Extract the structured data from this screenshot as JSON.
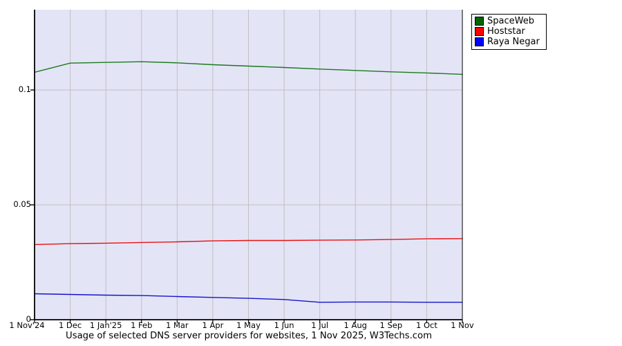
{
  "chart_data": {
    "type": "line",
    "title": "Usage of selected DNS server providers for websites, 1 Nov 2025, W3Techs.com",
    "x_labels": [
      "1 Nov'24",
      "1 Dec",
      "1 Jan'25",
      "1 Feb",
      "1 Mar",
      "1 Apr",
      "1 May",
      "1 Jun",
      "1 Jul",
      "1 Aug",
      "1 Sep",
      "1 Oct",
      "1 Nov"
    ],
    "yticks": [
      {
        "value": 0,
        "label": "0"
      },
      {
        "value": 0.05,
        "label": "0.05"
      },
      {
        "value": 0.1,
        "label": "0.1"
      }
    ],
    "ylim": [
      0,
      0.135
    ],
    "grid": true,
    "legend_position": "top-right",
    "series": [
      {
        "name": "SpaceWeb",
        "swatch_color": "#006400",
        "line_color": "#1a7a1a",
        "values": [
          0.1077,
          0.1117,
          0.112,
          0.1123,
          0.1118,
          0.111,
          0.1104,
          0.1098,
          0.1091,
          0.1085,
          0.1079,
          0.1074,
          0.1068
        ]
      },
      {
        "name": "Hoststar",
        "swatch_color": "#ff0000",
        "line_color": "#e81010",
        "values": [
          0.0327,
          0.0331,
          0.0333,
          0.0336,
          0.0339,
          0.0343,
          0.0345,
          0.0345,
          0.0346,
          0.0347,
          0.0349,
          0.0352,
          0.0353
        ]
      },
      {
        "name": "Raya Negar",
        "swatch_color": "#0000ff",
        "line_color": "#1414cc",
        "values": [
          0.0113,
          0.011,
          0.0107,
          0.0105,
          0.0101,
          0.0097,
          0.0093,
          0.0088,
          0.0076,
          0.0077,
          0.0077,
          0.0076,
          0.0076
        ]
      }
    ],
    "colors": {
      "plot_bg": "#e4e4f7",
      "grid": "#bfbfbf",
      "axis": "#000000",
      "text": "#000000",
      "legend_bg": "#ffffff",
      "legend_border": "#000000"
    }
  }
}
